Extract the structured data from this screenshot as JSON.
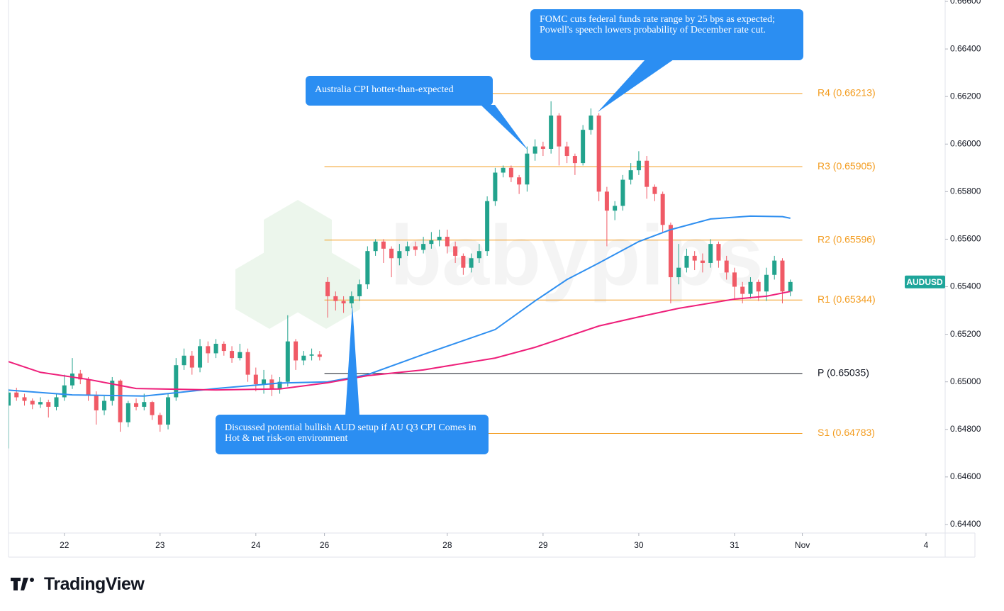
{
  "chart_data": {
    "type": "candlestick",
    "symbol": "AUDUSD",
    "watermark": "babypips",
    "up_color": "#22a38d",
    "down_color": "#f05a66",
    "open": [
      0.649,
      0.64955,
      0.64935,
      0.6492,
      0.64905,
      0.64915,
      0.64895,
      0.64935,
      0.64985,
      0.65035,
      0.6501,
      0.64945,
      0.6488,
      0.6492,
      0.65005,
      0.6483,
      0.6491,
      0.64895,
      0.64915,
      0.6486,
      0.6482,
      0.64935,
      0.6507,
      0.6511,
      0.6506,
      0.6515,
      0.6512,
      0.6516,
      0.6513,
      0.651,
      0.65125,
      0.6503,
      0.6499,
      0.6501,
      0.6497,
      0.65,
      0.6517,
      0.6509,
      0.6511,
      0.65115,
      0.6542,
      0.6536,
      0.6534,
      0.6533,
      0.6536,
      0.6541,
      0.6555,
      0.6559,
      0.6556,
      0.6552,
      0.6555,
      0.6557,
      0.65555,
      0.6558,
      0.65595,
      0.6561,
      0.6557,
      0.6553,
      0.6548,
      0.6552,
      0.6555,
      0.6576,
      0.6588,
      0.659,
      0.6586,
      0.6583,
      0.6596,
      0.6599,
      0.6598,
      0.6612,
      0.6599,
      0.6595,
      0.6592,
      0.6606,
      0.6612,
      0.658,
      0.6572,
      0.6574,
      0.6585,
      0.6589,
      0.6593,
      0.6582,
      0.6579,
      0.6566,
      0.6544,
      0.6548,
      0.6553,
      0.6551,
      0.655,
      0.6558,
      0.6551,
      0.6546,
      0.654,
      0.6537,
      0.6542,
      0.6538,
      0.6545,
      0.6551,
      0.6538
    ],
    "high": [
      0.6497,
      0.64975,
      0.6495,
      0.6493,
      0.64935,
      0.64925,
      0.6495,
      0.6503,
      0.651,
      0.6505,
      0.6502,
      0.6496,
      0.6494,
      0.6502,
      0.6501,
      0.6492,
      0.6493,
      0.6495,
      0.6492,
      0.6487,
      0.6495,
      0.651,
      0.6514,
      0.6513,
      0.6518,
      0.6517,
      0.6518,
      0.6517,
      0.6515,
      0.6516,
      0.6514,
      0.6506,
      0.6505,
      0.6503,
      0.6502,
      0.6528,
      0.6518,
      0.6513,
      0.6514,
      0.6513,
      0.6544,
      0.6538,
      0.6536,
      0.6538,
      0.6543,
      0.6557,
      0.656,
      0.656,
      0.6557,
      0.6558,
      0.6559,
      0.6559,
      0.6561,
      0.6563,
      0.6564,
      0.6564,
      0.6559,
      0.6554,
      0.6554,
      0.6558,
      0.6578,
      0.659,
      0.6591,
      0.6591,
      0.6587,
      0.6599,
      0.6602,
      0.6601,
      0.6618,
      0.6613,
      0.6601,
      0.6596,
      0.6608,
      0.6615,
      0.6613,
      0.6582,
      0.6576,
      0.6587,
      0.6592,
      0.6597,
      0.6595,
      0.6583,
      0.658,
      0.6567,
      0.6558,
      0.6556,
      0.6555,
      0.6554,
      0.656,
      0.6559,
      0.6553,
      0.6548,
      0.6542,
      0.6544,
      0.6543,
      0.6548,
      0.6553,
      0.6552,
      0.6543
    ],
    "low": [
      0.6472,
      0.6492,
      0.649,
      0.64885,
      0.6489,
      0.6485,
      0.6488,
      0.6492,
      0.6497,
      0.6499,
      0.6492,
      0.6482,
      0.6486,
      0.649,
      0.6479,
      0.6481,
      0.6488,
      0.6488,
      0.6484,
      0.6479,
      0.648,
      0.6492,
      0.6505,
      0.6503,
      0.6504,
      0.6508,
      0.651,
      0.6511,
      0.6508,
      0.6509,
      0.65,
      0.6496,
      0.6495,
      0.6494,
      0.6495,
      0.6498,
      0.6505,
      0.6507,
      0.6509,
      0.6509,
      0.6527,
      0.653,
      0.6529,
      0.6531,
      0.6534,
      0.6539,
      0.6553,
      0.655,
      0.6544,
      0.6549,
      0.6553,
      0.6553,
      0.6554,
      0.6556,
      0.6557,
      0.6554,
      0.655,
      0.6545,
      0.6546,
      0.655,
      0.6553,
      0.6574,
      0.6586,
      0.6584,
      0.6579,
      0.658,
      0.6593,
      0.6595,
      0.6596,
      0.6591,
      0.6592,
      0.6587,
      0.6591,
      0.6604,
      0.6576,
      0.6557,
      0.6568,
      0.6572,
      0.6583,
      0.6587,
      0.6577,
      0.6576,
      0.6563,
      0.6533,
      0.6541,
      0.6546,
      0.6547,
      0.6546,
      0.6548,
      0.6548,
      0.6543,
      0.6535,
      0.6533,
      0.6535,
      0.6534,
      0.6534,
      0.6543,
      0.6533,
      0.6536
    ],
    "close": [
      0.64955,
      0.64935,
      0.6492,
      0.64905,
      0.64915,
      0.64895,
      0.64935,
      0.64985,
      0.65035,
      0.6501,
      0.64945,
      0.6488,
      0.6492,
      0.65005,
      0.6483,
      0.6491,
      0.64895,
      0.64915,
      0.6486,
      0.6482,
      0.64935,
      0.6507,
      0.6511,
      0.6506,
      0.6515,
      0.6512,
      0.6516,
      0.6513,
      0.651,
      0.65125,
      0.6503,
      0.6499,
      0.6501,
      0.6497,
      0.65,
      0.6517,
      0.6509,
      0.6511,
      0.65115,
      0.65105,
      0.6536,
      0.6534,
      0.6533,
      0.6536,
      0.6541,
      0.6555,
      0.6559,
      0.6556,
      0.6552,
      0.6555,
      0.6557,
      0.65555,
      0.6558,
      0.65595,
      0.6561,
      0.6557,
      0.6553,
      0.6548,
      0.6552,
      0.6555,
      0.6576,
      0.6588,
      0.659,
      0.6586,
      0.6583,
      0.6596,
      0.6599,
      0.6598,
      0.6612,
      0.6599,
      0.6595,
      0.6592,
      0.6606,
      0.6612,
      0.658,
      0.6572,
      0.6574,
      0.6585,
      0.6589,
      0.6593,
      0.6582,
      0.6579,
      0.6566,
      0.6544,
      0.6548,
      0.6553,
      0.6551,
      0.655,
      0.6558,
      0.6551,
      0.6546,
      0.654,
      0.6537,
      0.6542,
      0.6538,
      0.6545,
      0.6551,
      0.6538,
      0.6542
    ],
    "moving_averages": [
      {
        "color": "#2f8ff0",
        "x": [
          0,
          8,
          17,
          26,
          34,
          40,
          45,
          52,
          61,
          66,
          70,
          74,
          79,
          83,
          88,
          93,
          97,
          98
        ],
        "values": [
          0.64965,
          0.64945,
          0.6494,
          0.64972,
          0.64995,
          0.65,
          0.6503,
          0.65115,
          0.6522,
          0.6534,
          0.6543,
          0.655,
          0.6559,
          0.6564,
          0.65685,
          0.65697,
          0.65695,
          0.65688
        ]
      },
      {
        "color": "#ee1f7a",
        "x": [
          0,
          4,
          10,
          16,
          26,
          34,
          40,
          45,
          52,
          61,
          66,
          74,
          79,
          84,
          91,
          95,
          98
        ],
        "values": [
          0.65085,
          0.6504,
          0.6501,
          0.64972,
          0.64966,
          0.6497,
          0.64996,
          0.65026,
          0.6505,
          0.651,
          0.65145,
          0.65235,
          0.65273,
          0.65309,
          0.65348,
          0.6536,
          0.6538
        ]
      }
    ],
    "pivots": [
      {
        "label": "R4 (0.66213)",
        "value": 0.66213,
        "color": "#f39c1f"
      },
      {
        "label": "R3 (0.65905)",
        "value": 0.65905,
        "color": "#f39c1f"
      },
      {
        "label": "R2 (0.65596)",
        "value": 0.65596,
        "color": "#f39c1f"
      },
      {
        "label": "R1 (0.65344)",
        "value": 0.65344,
        "color": "#f39c1f"
      },
      {
        "label": "P (0.65035)",
        "value": 0.65035,
        "color": "#131722"
      },
      {
        "label": "S1 (0.64783)",
        "value": 0.64783,
        "color": "#f39c1f"
      }
    ],
    "annotations": [
      "FOMC cuts federal funds rate range by 25 bps as expected; Powell's speech lowers probability of December rate cut.",
      "Australia CPI hotter-than-expected",
      "Discussed potential bullish AUD setup if AU Q3 CPI Comes in Hot & net risk-on environment"
    ],
    "xlim": [
      0,
      117.4
    ],
    "xticks": [
      {
        "value": 7,
        "label": "22"
      },
      {
        "value": 19,
        "label": "23"
      },
      {
        "value": 31,
        "label": "24"
      },
      {
        "value": 39.6,
        "label": "26"
      },
      {
        "value": 55,
        "label": "28"
      },
      {
        "value": 67,
        "label": "29"
      },
      {
        "value": 79,
        "label": "30"
      },
      {
        "value": 91,
        "label": "31"
      },
      {
        "value": 99.5,
        "label": "Nov"
      },
      {
        "value": 115,
        "label": "4"
      }
    ],
    "ylim": [
      0.64364,
      0.66606
    ],
    "yticks": [
      {
        "value": 0.644,
        "label": "0.64400"
      },
      {
        "value": 0.646,
        "label": "0.64600"
      },
      {
        "value": 0.648,
        "label": "0.64800"
      },
      {
        "value": 0.65,
        "label": "0.65000"
      },
      {
        "value": 0.652,
        "label": "0.65200"
      },
      {
        "value": 0.654,
        "label": "0.65400"
      },
      {
        "value": 0.656,
        "label": "0.65600"
      },
      {
        "value": 0.658,
        "label": "0.65800"
      },
      {
        "value": 0.66,
        "label": "0.66000"
      },
      {
        "value": 0.662,
        "label": "0.66200"
      },
      {
        "value": 0.664,
        "label": "0.66400"
      },
      {
        "value": 0.666,
        "label": "0.66600"
      }
    ]
  },
  "brand": "TradingView"
}
